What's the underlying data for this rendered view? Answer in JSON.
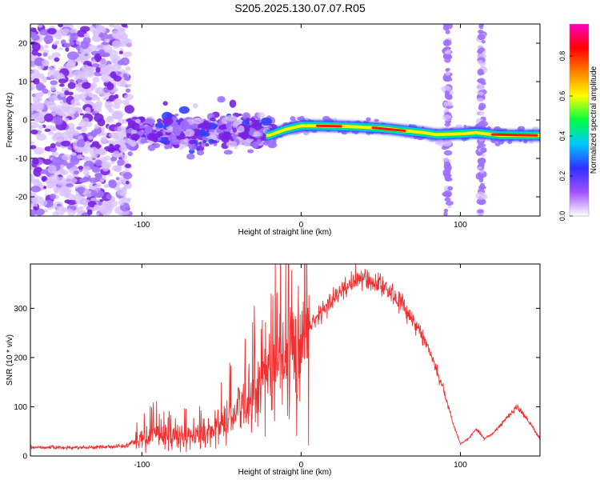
{
  "title": "S205.2025.130.07.07.R05",
  "colors": {
    "snr_line": "#f03030",
    "spectrogram_palette": [
      "#ffffff",
      "#d8c0ff",
      "#a070ff",
      "#7a20e0",
      "#3040ff",
      "#00c8ff",
      "#00e060",
      "#fff000",
      "#ff9000",
      "#ff1010"
    ],
    "colorbar_palette": [
      "#ffffff",
      "#a050ff",
      "#3030ff",
      "#00c8ff",
      "#00ff40",
      "#ffff00",
      "#ff8000",
      "#ff0000",
      "#ff00c0"
    ]
  },
  "chart_data": [
    {
      "type": "heatmap",
      "xlabel": "Height of straight line (km)",
      "ylabel": "Frequency (Hz)",
      "xlim": [
        -170,
        150
      ],
      "ylim": [
        -25,
        25
      ],
      "x_ticks": [
        -100,
        0,
        100
      ],
      "y_ticks": [
        -20,
        -10,
        0,
        10,
        20
      ],
      "colorbar": {
        "label": "Normalized spectral amplitude",
        "range": [
          0,
          0.96
        ],
        "ticks": [
          "0.0",
          "0.2",
          "0.4",
          "0.6",
          "0.8"
        ]
      },
      "dominant_ridge": [
        {
          "x": -20,
          "y": -4.0
        },
        {
          "x": -10,
          "y": -2.5
        },
        {
          "x": 0,
          "y": -1.5
        },
        {
          "x": 10,
          "y": -1.5
        },
        {
          "x": 20,
          "y": -1.6
        },
        {
          "x": 30,
          "y": -1.7
        },
        {
          "x": 45,
          "y": -2.0
        },
        {
          "x": 55,
          "y": -2.3
        },
        {
          "x": 65,
          "y": -2.8
        },
        {
          "x": 75,
          "y": -3.2
        },
        {
          "x": 85,
          "y": -3.8
        },
        {
          "x": 100,
          "y": -3.6
        },
        {
          "x": 110,
          "y": -3.3
        },
        {
          "x": 125,
          "y": -4.0
        },
        {
          "x": 140,
          "y": -4.0
        },
        {
          "x": 150,
          "y": -4.0
        }
      ]
    },
    {
      "type": "line",
      "xlabel": "Height of straight line (km)",
      "ylabel": "SNR (10 * v/v)",
      "xlim": [
        -170,
        150
      ],
      "ylim": [
        0,
        390
      ],
      "x_ticks": [
        -100,
        0,
        100
      ],
      "y_ticks": [
        0,
        100,
        200,
        300
      ],
      "series": [
        {
          "x": [
            -170,
            -150,
            -130,
            -110,
            -105,
            -100,
            -90,
            -80,
            -70,
            -60,
            -50,
            -40,
            -30,
            -20,
            -15,
            -10,
            -5,
            0,
            10,
            20,
            30,
            40,
            50,
            60,
            70,
            80,
            90,
            95,
            100,
            105,
            110,
            115,
            120,
            130,
            135,
            140,
            150
          ],
          "y": [
            18,
            17,
            18,
            20,
            30,
            35,
            45,
            40,
            40,
            45,
            60,
            90,
            120,
            160,
            180,
            200,
            220,
            240,
            280,
            320,
            350,
            360,
            350,
            320,
            280,
            220,
            130,
            70,
            25,
            35,
            55,
            35,
            45,
            80,
            100,
            85,
            35
          ]
        }
      ]
    }
  ]
}
